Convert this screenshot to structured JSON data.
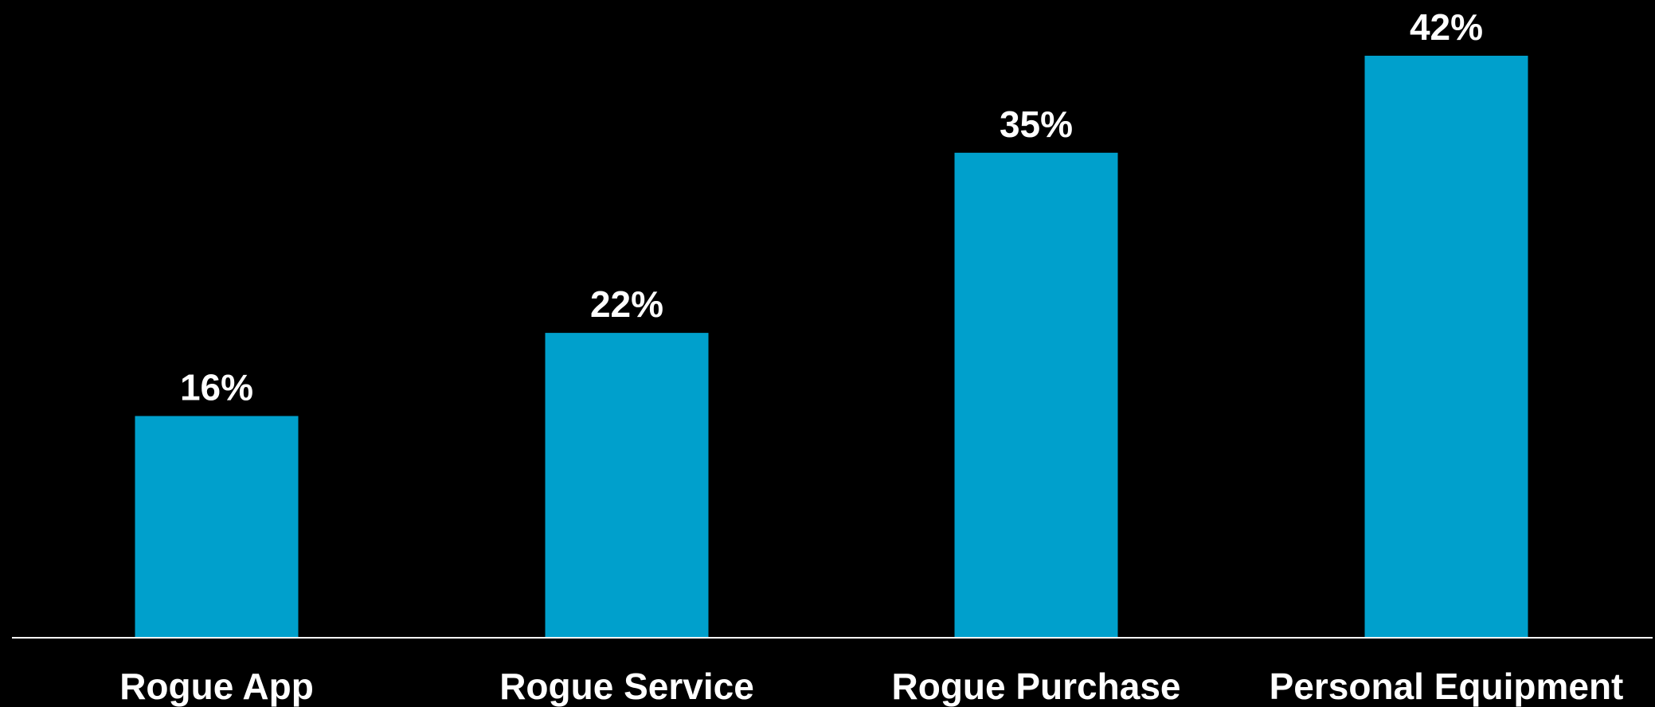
{
  "chart_data": {
    "type": "bar",
    "categories": [
      "Rogue App",
      "Rogue Service",
      "Rogue Purchase",
      "Personal Equipment"
    ],
    "values": [
      16,
      22,
      35,
      42
    ],
    "data_labels": [
      "16%",
      "22%",
      "35%",
      "42%"
    ],
    "unit": "%",
    "title": "",
    "xlabel": "",
    "ylabel": "",
    "ylim": [
      0,
      42
    ],
    "grid": false,
    "legend": "none",
    "colors": {
      "bar": "#00A0CC",
      "background": "#000000",
      "axis": "#FFFFFF",
      "text": "#FFFFFF"
    }
  }
}
